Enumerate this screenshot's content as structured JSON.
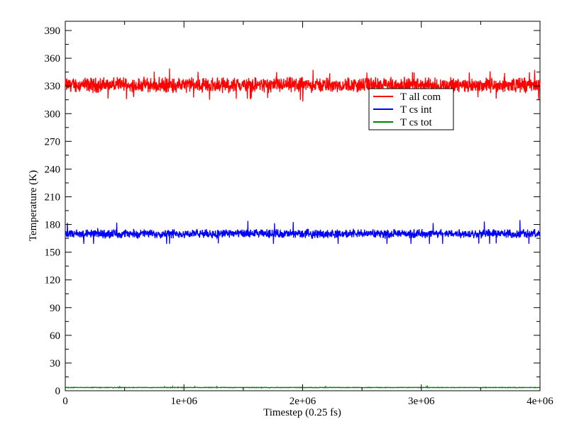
{
  "chart_data": {
    "type": "line",
    "title": "",
    "xlabel": "Timestep (0.25 fs)",
    "ylabel": "Temperature (K)",
    "xlim": [
      0,
      4000000
    ],
    "ylim": [
      0,
      400
    ],
    "x_ticks": [
      0,
      1000000,
      2000000,
      3000000,
      4000000
    ],
    "x_tick_labels": [
      "0",
      "1e+06",
      "2e+06",
      "3e+06",
      "4e+06"
    ],
    "y_ticks": [
      0,
      30,
      60,
      90,
      120,
      150,
      180,
      210,
      240,
      270,
      300,
      330,
      360,
      390
    ],
    "y_tick_labels": [
      "0",
      "30",
      "60",
      "90",
      "120",
      "150",
      "180",
      "210",
      "240",
      "270",
      "300",
      "330",
      "360",
      "390"
    ],
    "grid": false,
    "legend_position": "top-right",
    "series": [
      {
        "name": "T all com",
        "color": "#ff0000",
        "mean": 331,
        "fluctuation": 6,
        "min": 312,
        "max": 349
      },
      {
        "name": "T cs int",
        "color": "#0000ff",
        "mean": 170,
        "fluctuation": 3.5,
        "min": 159,
        "max": 185
      },
      {
        "name": "T cs tot",
        "color": "#008000",
        "mean": 3.5,
        "fluctuation": 0.2,
        "min": 3,
        "max": 4.5
      }
    ]
  }
}
